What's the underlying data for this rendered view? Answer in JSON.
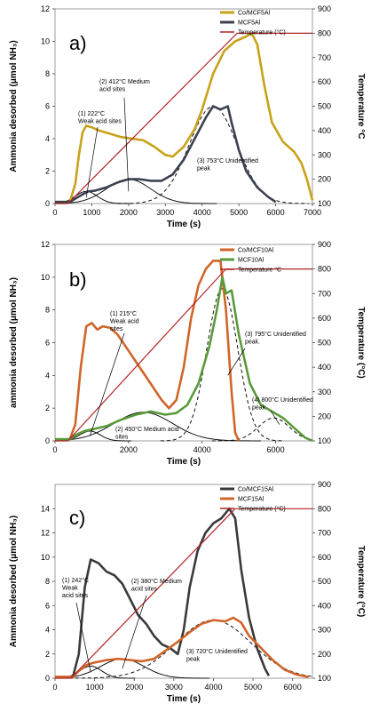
{
  "chart_data": [
    {
      "type": "line",
      "panel_label": "a)",
      "xlabel": "Time (s)",
      "ylabel": "Ammonia desorbed (μmol NH₃)",
      "y2label": "Temperature °C",
      "xlim": [
        0,
        7000
      ],
      "ylim": [
        0,
        12
      ],
      "y2lim": [
        100,
        900
      ],
      "xticks": [
        "0",
        "1000",
        "2000",
        "3000",
        "4000",
        "5000",
        "6000",
        "7000"
      ],
      "yticks": [
        "0",
        "2",
        "4",
        "6",
        "8",
        "10",
        "12"
      ],
      "y2ticks": [
        "100",
        "200",
        "300",
        "400",
        "500",
        "600",
        "700",
        "800",
        "900"
      ],
      "legend": [
        "Co/MCF5Al",
        "MCF5Al",
        "Temperature (°C)"
      ],
      "series": [
        {
          "name": "Co/MCF5Al",
          "color": "#c8a21a",
          "axis": "left",
          "points": [
            [
              0,
              0.1
            ],
            [
              400,
              0.1
            ],
            [
              550,
              1.2
            ],
            [
              650,
              3
            ],
            [
              750,
              4.4
            ],
            [
              850,
              4.8
            ],
            [
              1000,
              4.7
            ],
            [
              1200,
              4.5
            ],
            [
              1500,
              4.3
            ],
            [
              1800,
              4.1
            ],
            [
              2100,
              4.0
            ],
            [
              2400,
              3.9
            ],
            [
              2700,
              3.5
            ],
            [
              3000,
              3.0
            ],
            [
              3200,
              2.9
            ],
            [
              3500,
              3.5
            ],
            [
              3800,
              4.6
            ],
            [
              4000,
              5.8
            ],
            [
              4300,
              8.0
            ],
            [
              4600,
              9.4
            ],
            [
              4900,
              10.0
            ],
            [
              5200,
              10.3
            ],
            [
              5350,
              10.5
            ],
            [
              5500,
              9.8
            ],
            [
              5700,
              7.2
            ],
            [
              5900,
              5.0
            ],
            [
              6200,
              3.8
            ],
            [
              6500,
              3.2
            ],
            [
              6700,
              2.5
            ],
            [
              6850,
              1.5
            ],
            [
              7000,
              0.2
            ]
          ]
        },
        {
          "name": "MCF5Al",
          "color": "#3c4150",
          "axis": "left",
          "points": [
            [
              0,
              0.1
            ],
            [
              400,
              0.1
            ],
            [
              550,
              0.3
            ],
            [
              700,
              0.5
            ],
            [
              900,
              0.75
            ],
            [
              1100,
              0.8
            ],
            [
              1400,
              1.0
            ],
            [
              1700,
              1.3
            ],
            [
              2000,
              1.5
            ],
            [
              2300,
              1.5
            ],
            [
              2600,
              1.4
            ],
            [
              2900,
              1.4
            ],
            [
              3200,
              1.8
            ],
            [
              3500,
              2.7
            ],
            [
              3800,
              4.0
            ],
            [
              4100,
              5.3
            ],
            [
              4300,
              6.0
            ],
            [
              4500,
              5.8
            ],
            [
              4700,
              6.0
            ],
            [
              4800,
              5.0
            ],
            [
              5000,
              3.3
            ],
            [
              5200,
              2.0
            ],
            [
              5500,
              1.0
            ],
            [
              5800,
              0.4
            ],
            [
              6000,
              0.1
            ]
          ]
        },
        {
          "name": "Temperature (°C)",
          "color": "#b22222",
          "axis": "right",
          "points": [
            [
              0,
              100
            ],
            [
              350,
              100
            ],
            [
              4950,
              800
            ],
            [
              7000,
              800
            ]
          ]
        }
      ],
      "fits": [
        {
          "name": "(1) 222°C Weak acid sites",
          "center": 850,
          "height": 0.75,
          "sigma": 300,
          "style": "solid"
        },
        {
          "name": "(2) 412°C Medium acid sites",
          "center": 2000,
          "height": 1.5,
          "sigma": 600,
          "style": "solid"
        },
        {
          "name": "(3) 753°C Unidentified peak",
          "center": 4300,
          "height": 6.0,
          "sigma": 650,
          "style": "dashed"
        }
      ],
      "annotations": [
        {
          "lines": [
            "(1) 222°C",
            "Weak acid sites"
          ]
        },
        {
          "lines": [
            "(2) 412°C Medium",
            "acid sites"
          ]
        },
        {
          "lines": [
            "(3) 753°C Unidentified",
            "peak"
          ]
        }
      ]
    },
    {
      "type": "line",
      "panel_label": "b)",
      "xlabel": "Time (s)",
      "ylabel": "ammonia desorbed (μmol NH₃)",
      "y2label": "Temperature (°C)",
      "xlim": [
        0,
        7000
      ],
      "ylim": [
        0,
        12
      ],
      "y2lim": [
        100,
        900
      ],
      "xticks": [
        "0",
        "2000",
        "4000",
        "6000"
      ],
      "yticks": [
        "0",
        "2",
        "4",
        "6",
        "8",
        "10",
        "12"
      ],
      "y2ticks": [
        "100",
        "200",
        "300",
        "400",
        "500",
        "600",
        "700",
        "800",
        "900"
      ],
      "legend": [
        "Co/MCF10Al",
        "MCF10Al",
        "Temperature °C"
      ],
      "series": [
        {
          "name": "Co/MCF10Al",
          "color": "#d0652a",
          "axis": "left",
          "points": [
            [
              0,
              0.1
            ],
            [
              400,
              0.1
            ],
            [
              550,
              1
            ],
            [
              700,
              4.5
            ],
            [
              850,
              7.0
            ],
            [
              1000,
              7.2
            ],
            [
              1150,
              6.8
            ],
            [
              1300,
              7.0
            ],
            [
              1500,
              6.9
            ],
            [
              1700,
              6.5
            ],
            [
              2000,
              5.5
            ],
            [
              2300,
              4.5
            ],
            [
              2600,
              3.5
            ],
            [
              2900,
              2.5
            ],
            [
              3100,
              2.0
            ],
            [
              3300,
              2.5
            ],
            [
              3500,
              4.5
            ],
            [
              3700,
              7.5
            ],
            [
              3900,
              9.5
            ],
            [
              4100,
              10.5
            ],
            [
              4300,
              11.0
            ],
            [
              4500,
              11.0
            ],
            [
              4650,
              8.0
            ],
            [
              4800,
              3.0
            ],
            [
              4900,
              0.5
            ],
            [
              5000,
              0
            ]
          ]
        },
        {
          "name": "MCF10Al",
          "color": "#5a9a3a",
          "axis": "left",
          "points": [
            [
              0,
              0.1
            ],
            [
              400,
              0.1
            ],
            [
              600,
              0.4
            ],
            [
              800,
              0.6
            ],
            [
              1000,
              0.7
            ],
            [
              1400,
              0.9
            ],
            [
              1800,
              1.3
            ],
            [
              2200,
              1.6
            ],
            [
              2600,
              1.8
            ],
            [
              3000,
              1.6
            ],
            [
              3300,
              1.7
            ],
            [
              3600,
              2.2
            ],
            [
              3900,
              3.5
            ],
            [
              4200,
              5.8
            ],
            [
              4400,
              8.0
            ],
            [
              4550,
              10.0
            ],
            [
              4650,
              9.0
            ],
            [
              4800,
              9.2
            ],
            [
              5000,
              6.5
            ],
            [
              5300,
              3.5
            ],
            [
              5600,
              2.2
            ],
            [
              5900,
              1.8
            ],
            [
              6200,
              1.4
            ],
            [
              6500,
              0.8
            ],
            [
              6800,
              0.2
            ],
            [
              7000,
              0
            ]
          ]
        },
        {
          "name": "Temperature °C",
          "color": "#b22222",
          "axis": "right",
          "points": [
            [
              0,
              100
            ],
            [
              350,
              100
            ],
            [
              4650,
              800
            ],
            [
              7000,
              800
            ]
          ]
        }
      ],
      "fits": [
        {
          "name": "(1) 215°C Weak acid sites",
          "center": 950,
          "height": 0.6,
          "sigma": 280,
          "style": "solid"
        },
        {
          "name": "(2) 450°C Medium acid sites",
          "center": 2400,
          "height": 1.75,
          "sigma": 800,
          "style": "solid"
        },
        {
          "name": "(3) 795°C Unidentified peak",
          "center": 4550,
          "height": 9.3,
          "sigma": 420,
          "style": "dashed"
        },
        {
          "name": "(4) 800°C Unidentified peak",
          "center": 5950,
          "height": 1.4,
          "sigma": 420,
          "style": "dashed"
        }
      ],
      "annotations": [
        {
          "lines": [
            "(1) 215°C",
            "Weak acid",
            "sites"
          ]
        },
        {
          "lines": [
            "(2) 450°C Medium acid",
            "sites"
          ]
        },
        {
          "lines": [
            "(3) 795°C Unidentified",
            "peak."
          ]
        },
        {
          "lines": [
            "(4) 800°C Unidentified",
            "peak"
          ]
        }
      ]
    },
    {
      "type": "line",
      "panel_label": "c)",
      "xlabel": "Time (s)",
      "ylabel": "Ammonia desorbed (μmol NH₃)",
      "y2label": "Temperature (°C)",
      "xlim": [
        0,
        6500
      ],
      "ylim": [
        0,
        16
      ],
      "y2lim": [
        100,
        900
      ],
      "xticks": [
        "0",
        "1000",
        "2000",
        "3000",
        "4000",
        "5000",
        "6000"
      ],
      "yticks": [
        "0",
        "2",
        "4",
        "6",
        "8",
        "10",
        "12",
        "14"
      ],
      "y2ticks": [
        "100",
        "200",
        "300",
        "400",
        "500",
        "600",
        "700",
        "800",
        "900"
      ],
      "legend": [
        "Co/MCF15Al",
        "MCF15Al",
        "Temperature (°C)"
      ],
      "series": [
        {
          "name": "Co/MCF15Al",
          "color": "#3a3a3a",
          "axis": "left",
          "points": [
            [
              0,
              0.1
            ],
            [
              450,
              0.1
            ],
            [
              600,
              2
            ],
            [
              750,
              7.5
            ],
            [
              900,
              9.8
            ],
            [
              1100,
              9.5
            ],
            [
              1300,
              8.8
            ],
            [
              1500,
              8.5
            ],
            [
              1700,
              7.8
            ],
            [
              1900,
              6.5
            ],
            [
              2100,
              5.2
            ],
            [
              2300,
              4.5
            ],
            [
              2500,
              3.5
            ],
            [
              2700,
              2.8
            ],
            [
              2900,
              2.5
            ],
            [
              3100,
              2.0
            ],
            [
              3250,
              4.0
            ],
            [
              3400,
              7.5
            ],
            [
              3600,
              10.5
            ],
            [
              3800,
              12.0
            ],
            [
              4000,
              12.8
            ],
            [
              4200,
              13.2
            ],
            [
              4400,
              14.0
            ],
            [
              4550,
              13.2
            ],
            [
              4700,
              9.0
            ],
            [
              4900,
              5.0
            ],
            [
              5100,
              2.5
            ],
            [
              5300,
              0.8
            ],
            [
              5400,
              0.2
            ]
          ]
        },
        {
          "name": "MCF15Al",
          "color": "#d0652a",
          "axis": "left",
          "points": [
            [
              0,
              0.1
            ],
            [
              450,
              0.1
            ],
            [
              600,
              0.6
            ],
            [
              800,
              1.1
            ],
            [
              1000,
              1.3
            ],
            [
              1300,
              1.5
            ],
            [
              1600,
              1.6
            ],
            [
              1900,
              1.5
            ],
            [
              2200,
              1.4
            ],
            [
              2500,
              1.6
            ],
            [
              2800,
              2.3
            ],
            [
              3100,
              3.0
            ],
            [
              3400,
              3.8
            ],
            [
              3700,
              4.5
            ],
            [
              4000,
              4.8
            ],
            [
              4300,
              4.7
            ],
            [
              4500,
              5.0
            ],
            [
              4700,
              4.6
            ],
            [
              4900,
              3.5
            ],
            [
              5200,
              2.5
            ],
            [
              5500,
              1.5
            ],
            [
              5800,
              0.7
            ],
            [
              6100,
              0.3
            ],
            [
              6400,
              0.1
            ]
          ]
        },
        {
          "name": "Temperature (°C)",
          "color": "#b22222",
          "axis": "right",
          "points": [
            [
              0,
              100
            ],
            [
              400,
              100
            ],
            [
              4550,
              800
            ],
            [
              6500,
              800
            ]
          ]
        }
      ],
      "fits": [
        {
          "name": "(1) 242°C Weak acid sites",
          "center": 900,
          "height": 1.0,
          "sigma": 280,
          "style": "solid"
        },
        {
          "name": "(2) 380°C Medium acid sites",
          "center": 1700,
          "height": 1.6,
          "sigma": 550,
          "style": "solid"
        },
        {
          "name": "(3) 720°C Unidentified peak",
          "center": 4000,
          "height": 4.8,
          "sigma": 950,
          "style": "dashed"
        }
      ],
      "annotations": [
        {
          "lines": [
            "(1) 242°C",
            "Weak",
            "acid sites"
          ]
        },
        {
          "lines": [
            "(2) 380°C Medium",
            "acid sites"
          ]
        },
        {
          "lines": [
            "(3) 720°C Unidentified",
            "peak"
          ]
        }
      ]
    }
  ]
}
